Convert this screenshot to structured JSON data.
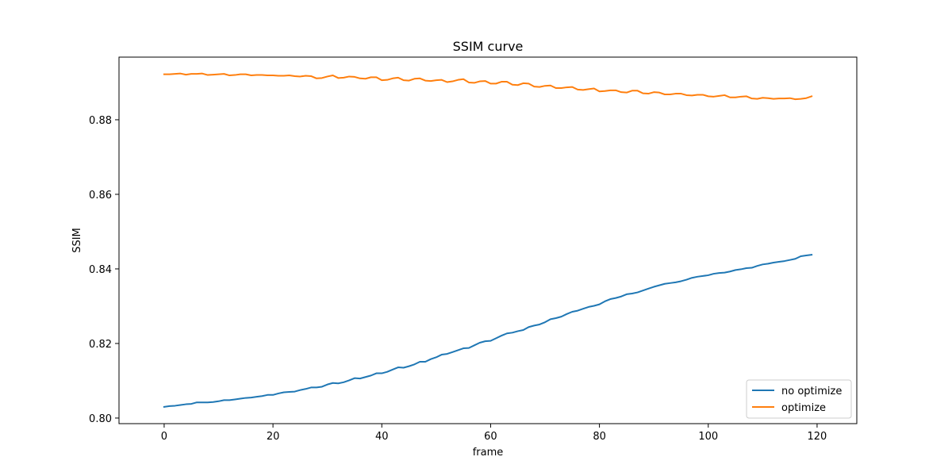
{
  "chart_data": {
    "type": "line",
    "title": "SSIM curve",
    "xlabel": "frame",
    "ylabel": "SSIM",
    "xlim": [
      -8.3,
      127.3
    ],
    "ylim": [
      0.7985,
      0.8968
    ],
    "xticks": [
      0,
      20,
      40,
      60,
      80,
      100,
      120
    ],
    "xtick_labels": [
      "0",
      "20",
      "40",
      "60",
      "80",
      "100",
      "120"
    ],
    "yticks": [
      0.8,
      0.82,
      0.84,
      0.86,
      0.88
    ],
    "ytick_labels": [
      "0.80",
      "0.82",
      "0.84",
      "0.86",
      "0.88"
    ],
    "grid": false,
    "legend_position": "lower-right",
    "series": [
      {
        "name": "no optimize",
        "color": "#1f77b4",
        "x_start": 0,
        "x_step": 1,
        "values": [
          0.803,
          0.8032,
          0.8033,
          0.8035,
          0.8037,
          0.8038,
          0.8042,
          0.8042,
          0.8042,
          0.8043,
          0.8045,
          0.8048,
          0.8048,
          0.805,
          0.8052,
          0.8054,
          0.8055,
          0.8057,
          0.8059,
          0.8062,
          0.8062,
          0.8066,
          0.8069,
          0.807,
          0.8071,
          0.8075,
          0.8078,
          0.8082,
          0.8082,
          0.8084,
          0.809,
          0.8094,
          0.8093,
          0.8096,
          0.8101,
          0.8107,
          0.8106,
          0.811,
          0.8114,
          0.812,
          0.812,
          0.8124,
          0.813,
          0.8136,
          0.8135,
          0.8139,
          0.8144,
          0.8151,
          0.8151,
          0.8158,
          0.8163,
          0.817,
          0.8172,
          0.8177,
          0.8182,
          0.8187,
          0.8188,
          0.8195,
          0.8202,
          0.8206,
          0.8207,
          0.8214,
          0.8221,
          0.8227,
          0.8229,
          0.8233,
          0.8236,
          0.8244,
          0.8248,
          0.8251,
          0.8257,
          0.8265,
          0.8268,
          0.8272,
          0.8279,
          0.8285,
          0.8288,
          0.8293,
          0.8298,
          0.8301,
          0.8305,
          0.8313,
          0.8319,
          0.8322,
          0.8326,
          0.8332,
          0.8334,
          0.8337,
          0.8342,
          0.8347,
          0.8352,
          0.8356,
          0.836,
          0.8362,
          0.8364,
          0.8367,
          0.8371,
          0.8376,
          0.8379,
          0.8381,
          0.8383,
          0.8387,
          0.8389,
          0.839,
          0.8393,
          0.8397,
          0.8399,
          0.8402,
          0.8403,
          0.8408,
          0.8412,
          0.8414,
          0.8417,
          0.8419,
          0.8421,
          0.8424,
          0.8427,
          0.8434,
          0.8436,
          0.8438
        ]
      },
      {
        "name": "optimize",
        "color": "#ff7f0e",
        "x_start": 0,
        "x_step": 1,
        "values": [
          0.8922,
          0.8922,
          0.8923,
          0.8924,
          0.8921,
          0.8923,
          0.8923,
          0.8924,
          0.892,
          0.8921,
          0.8922,
          0.8923,
          0.8919,
          0.892,
          0.8922,
          0.8922,
          0.8919,
          0.892,
          0.892,
          0.8919,
          0.8919,
          0.8918,
          0.8918,
          0.8919,
          0.8917,
          0.8916,
          0.8918,
          0.8917,
          0.8911,
          0.8912,
          0.8916,
          0.8919,
          0.8912,
          0.8913,
          0.8916,
          0.8915,
          0.8911,
          0.891,
          0.8914,
          0.8914,
          0.8906,
          0.8907,
          0.8911,
          0.8913,
          0.8906,
          0.8905,
          0.891,
          0.8911,
          0.8905,
          0.8904,
          0.8906,
          0.8907,
          0.8901,
          0.8903,
          0.8907,
          0.8909,
          0.89,
          0.8899,
          0.8903,
          0.8904,
          0.8897,
          0.8897,
          0.8902,
          0.8902,
          0.8894,
          0.8893,
          0.8898,
          0.8897,
          0.8889,
          0.8888,
          0.8891,
          0.8892,
          0.8885,
          0.8885,
          0.8887,
          0.8888,
          0.8881,
          0.888,
          0.8882,
          0.8884,
          0.8876,
          0.8877,
          0.8879,
          0.8879,
          0.8874,
          0.8873,
          0.8878,
          0.8878,
          0.8871,
          0.887,
          0.8874,
          0.8873,
          0.8868,
          0.8868,
          0.887,
          0.887,
          0.8866,
          0.8865,
          0.8867,
          0.8867,
          0.8863,
          0.8862,
          0.8864,
          0.8866,
          0.886,
          0.886,
          0.8862,
          0.8863,
          0.8857,
          0.8856,
          0.8859,
          0.8858,
          0.8856,
          0.8857,
          0.8857,
          0.8858,
          0.8855,
          0.8856,
          0.8858,
          0.8863
        ]
      }
    ]
  }
}
